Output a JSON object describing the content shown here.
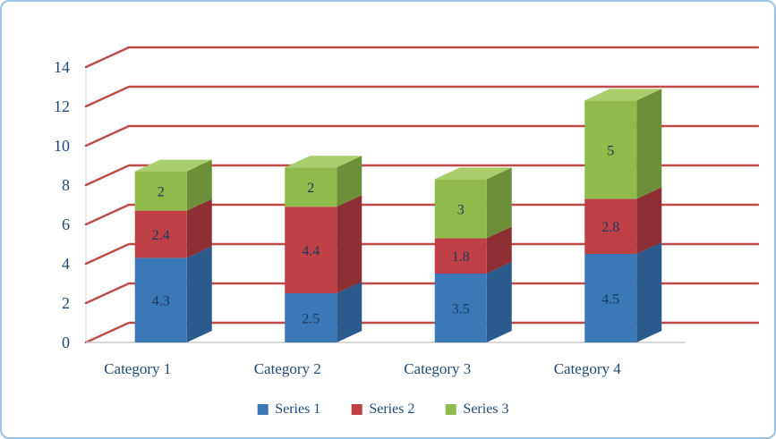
{
  "chart_data": {
    "type": "bar",
    "subtype": "3d-stacked-column",
    "title": "",
    "xlabel": "",
    "ylabel": "",
    "categories": [
      "Category 1",
      "Category 2",
      "Category 3",
      "Category 4"
    ],
    "series": [
      {
        "name": "Series 1",
        "values": [
          4.3,
          2.5,
          3.5,
          4.5
        ],
        "color": "#3B78B8",
        "color_side": "#2B5A8C",
        "color_top": "#5E93CA"
      },
      {
        "name": "Series 2",
        "values": [
          2.4,
          4.4,
          1.8,
          2.8
        ],
        "color": "#BE4045",
        "color_side": "#8E2F34",
        "color_top": "#CC6A66"
      },
      {
        "name": "Series 3",
        "values": [
          2,
          2,
          3,
          5
        ],
        "color": "#8FBB4C",
        "color_side": "#6C9038",
        "color_top": "#A9CD6C"
      }
    ],
    "y_ticks": [
      0,
      2,
      4,
      6,
      8,
      10,
      12,
      14
    ],
    "ylim": [
      0,
      14
    ],
    "grid": true,
    "legend_position": "bottom",
    "gridline_color": "#BE4B48",
    "axis_text_color": "#1F4977",
    "value_label_color": "#1E3A5F",
    "axis_line_color": "#C9C9C9",
    "frame_border_color": "#9CC3E5"
  }
}
